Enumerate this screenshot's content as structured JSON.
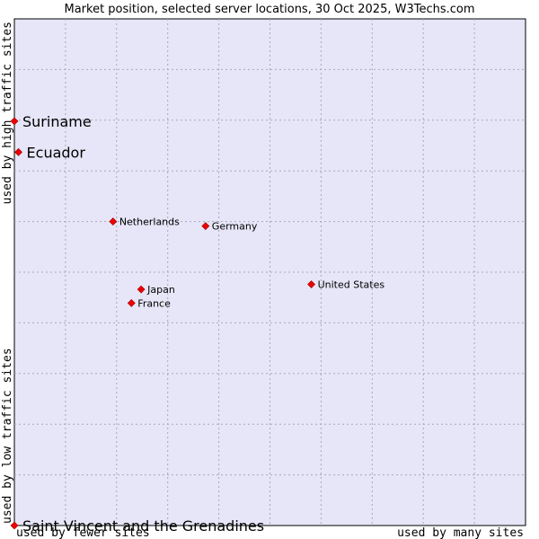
{
  "chart_data": {
    "type": "scatter",
    "title": "Market position, selected server locations, 30 Oct 2025, W3Techs.com",
    "xlabel_left": "used by fewer sites",
    "xlabel_right": "used by many sites",
    "ylabel_bottom": "used by low traffic sites",
    "ylabel_top": "used by high traffic sites",
    "xlim": [
      0,
      100
    ],
    "ylim": [
      0,
      100
    ],
    "grid": true,
    "colors": {
      "plot_background": "#e6e6f8",
      "grid": "#a8a8b8",
      "point": "#ee0000"
    },
    "points": [
      {
        "label": "Suriname",
        "x": 0.0,
        "y": 79.8,
        "emphasis": "large"
      },
      {
        "label": "Ecuador",
        "x": 0.8,
        "y": 73.7,
        "emphasis": "large"
      },
      {
        "label": "Netherlands",
        "x": 19.3,
        "y": 60.0,
        "emphasis": "small"
      },
      {
        "label": "Germany",
        "x": 37.4,
        "y": 59.1,
        "emphasis": "small"
      },
      {
        "label": "United States",
        "x": 58.1,
        "y": 47.6,
        "emphasis": "small"
      },
      {
        "label": "Japan",
        "x": 24.8,
        "y": 46.6,
        "emphasis": "small"
      },
      {
        "label": "France",
        "x": 22.9,
        "y": 43.9,
        "emphasis": "small"
      },
      {
        "label": "Saint Vincent and the Grenadines",
        "x": 0.0,
        "y": 0.0,
        "emphasis": "large"
      }
    ]
  }
}
